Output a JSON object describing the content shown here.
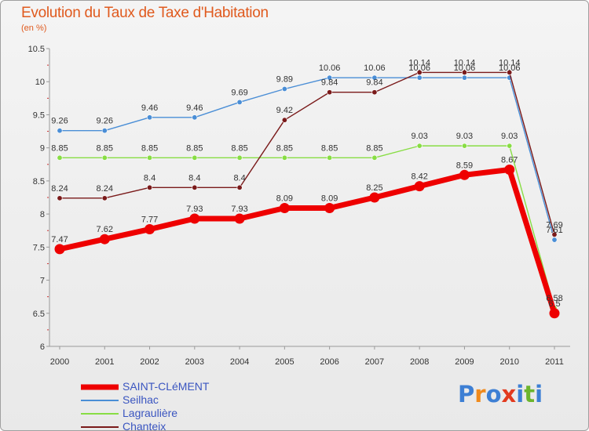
{
  "chart_data": {
    "type": "line",
    "title": "Evolution du Taux de Taxe d'Habitation",
    "subtitle": "(en %)",
    "xlabel": "",
    "ylabel": "",
    "categories": [
      "2000",
      "2001",
      "2002",
      "2003",
      "2004",
      "2005",
      "2006",
      "2007",
      "2008",
      "2009",
      "2010",
      "2011"
    ],
    "ylim": [
      6,
      10.5
    ],
    "yticks": [
      "6",
      "6.5",
      "7",
      "7.5",
      "8",
      "8.5",
      "9",
      "9.5",
      "10",
      "10.5"
    ],
    "grid": false,
    "legend_position": "bottom-left",
    "series": [
      {
        "name": "SAINT-CLéMENT",
        "color": "#ee0000",
        "values": [
          7.47,
          7.62,
          7.77,
          7.93,
          7.93,
          8.09,
          8.09,
          8.25,
          8.42,
          8.59,
          8.67,
          6.5
        ],
        "labels": [
          "7.47",
          "7.62",
          "7.77",
          "7.93",
          "7.93",
          "8.09",
          "8.09",
          "8.25",
          "8.42",
          "8.59",
          "8.67",
          "6.5"
        ]
      },
      {
        "name": "Seilhac",
        "color": "#4a8ed6",
        "values": [
          9.26,
          9.26,
          9.46,
          9.46,
          9.69,
          9.89,
          10.06,
          10.06,
          10.06,
          10.06,
          10.06,
          7.61
        ],
        "labels": [
          "9.26",
          "9.26",
          "9.46",
          "9.46",
          "9.69",
          "9.89",
          "10.06",
          "10.06",
          "10.06",
          "10.06",
          "10.06",
          "7.61"
        ]
      },
      {
        "name": "Lagraulière",
        "color": "#88dd44",
        "values": [
          8.85,
          8.85,
          8.85,
          8.85,
          8.85,
          8.85,
          8.85,
          8.85,
          9.03,
          9.03,
          9.03,
          6.58
        ],
        "labels": [
          "8.85",
          "8.85",
          "8.85",
          "8.85",
          "8.85",
          "8.85",
          "8.85",
          "8.85",
          "9.03",
          "9.03",
          "9.03",
          "6.58"
        ]
      },
      {
        "name": "Chanteix",
        "color": "#7a1a1a",
        "values": [
          8.24,
          8.24,
          8.4,
          8.4,
          8.4,
          9.42,
          9.84,
          9.84,
          10.14,
          10.14,
          10.14,
          7.69
        ],
        "labels": [
          "8.24",
          "8.24",
          "8.4",
          "8.4",
          "8.4",
          "9.42",
          "9.84",
          "9.84",
          "10.14",
          "10.14",
          "10.14",
          "7.69"
        ]
      }
    ]
  },
  "logo": {
    "text": "Proxiti",
    "letter_colors": [
      "#3d7fd4",
      "#f08a1c",
      "#3d7fd4",
      "#e23a1e",
      "#3d7fd4",
      "#6cb52d",
      "#3d7fd4"
    ]
  }
}
